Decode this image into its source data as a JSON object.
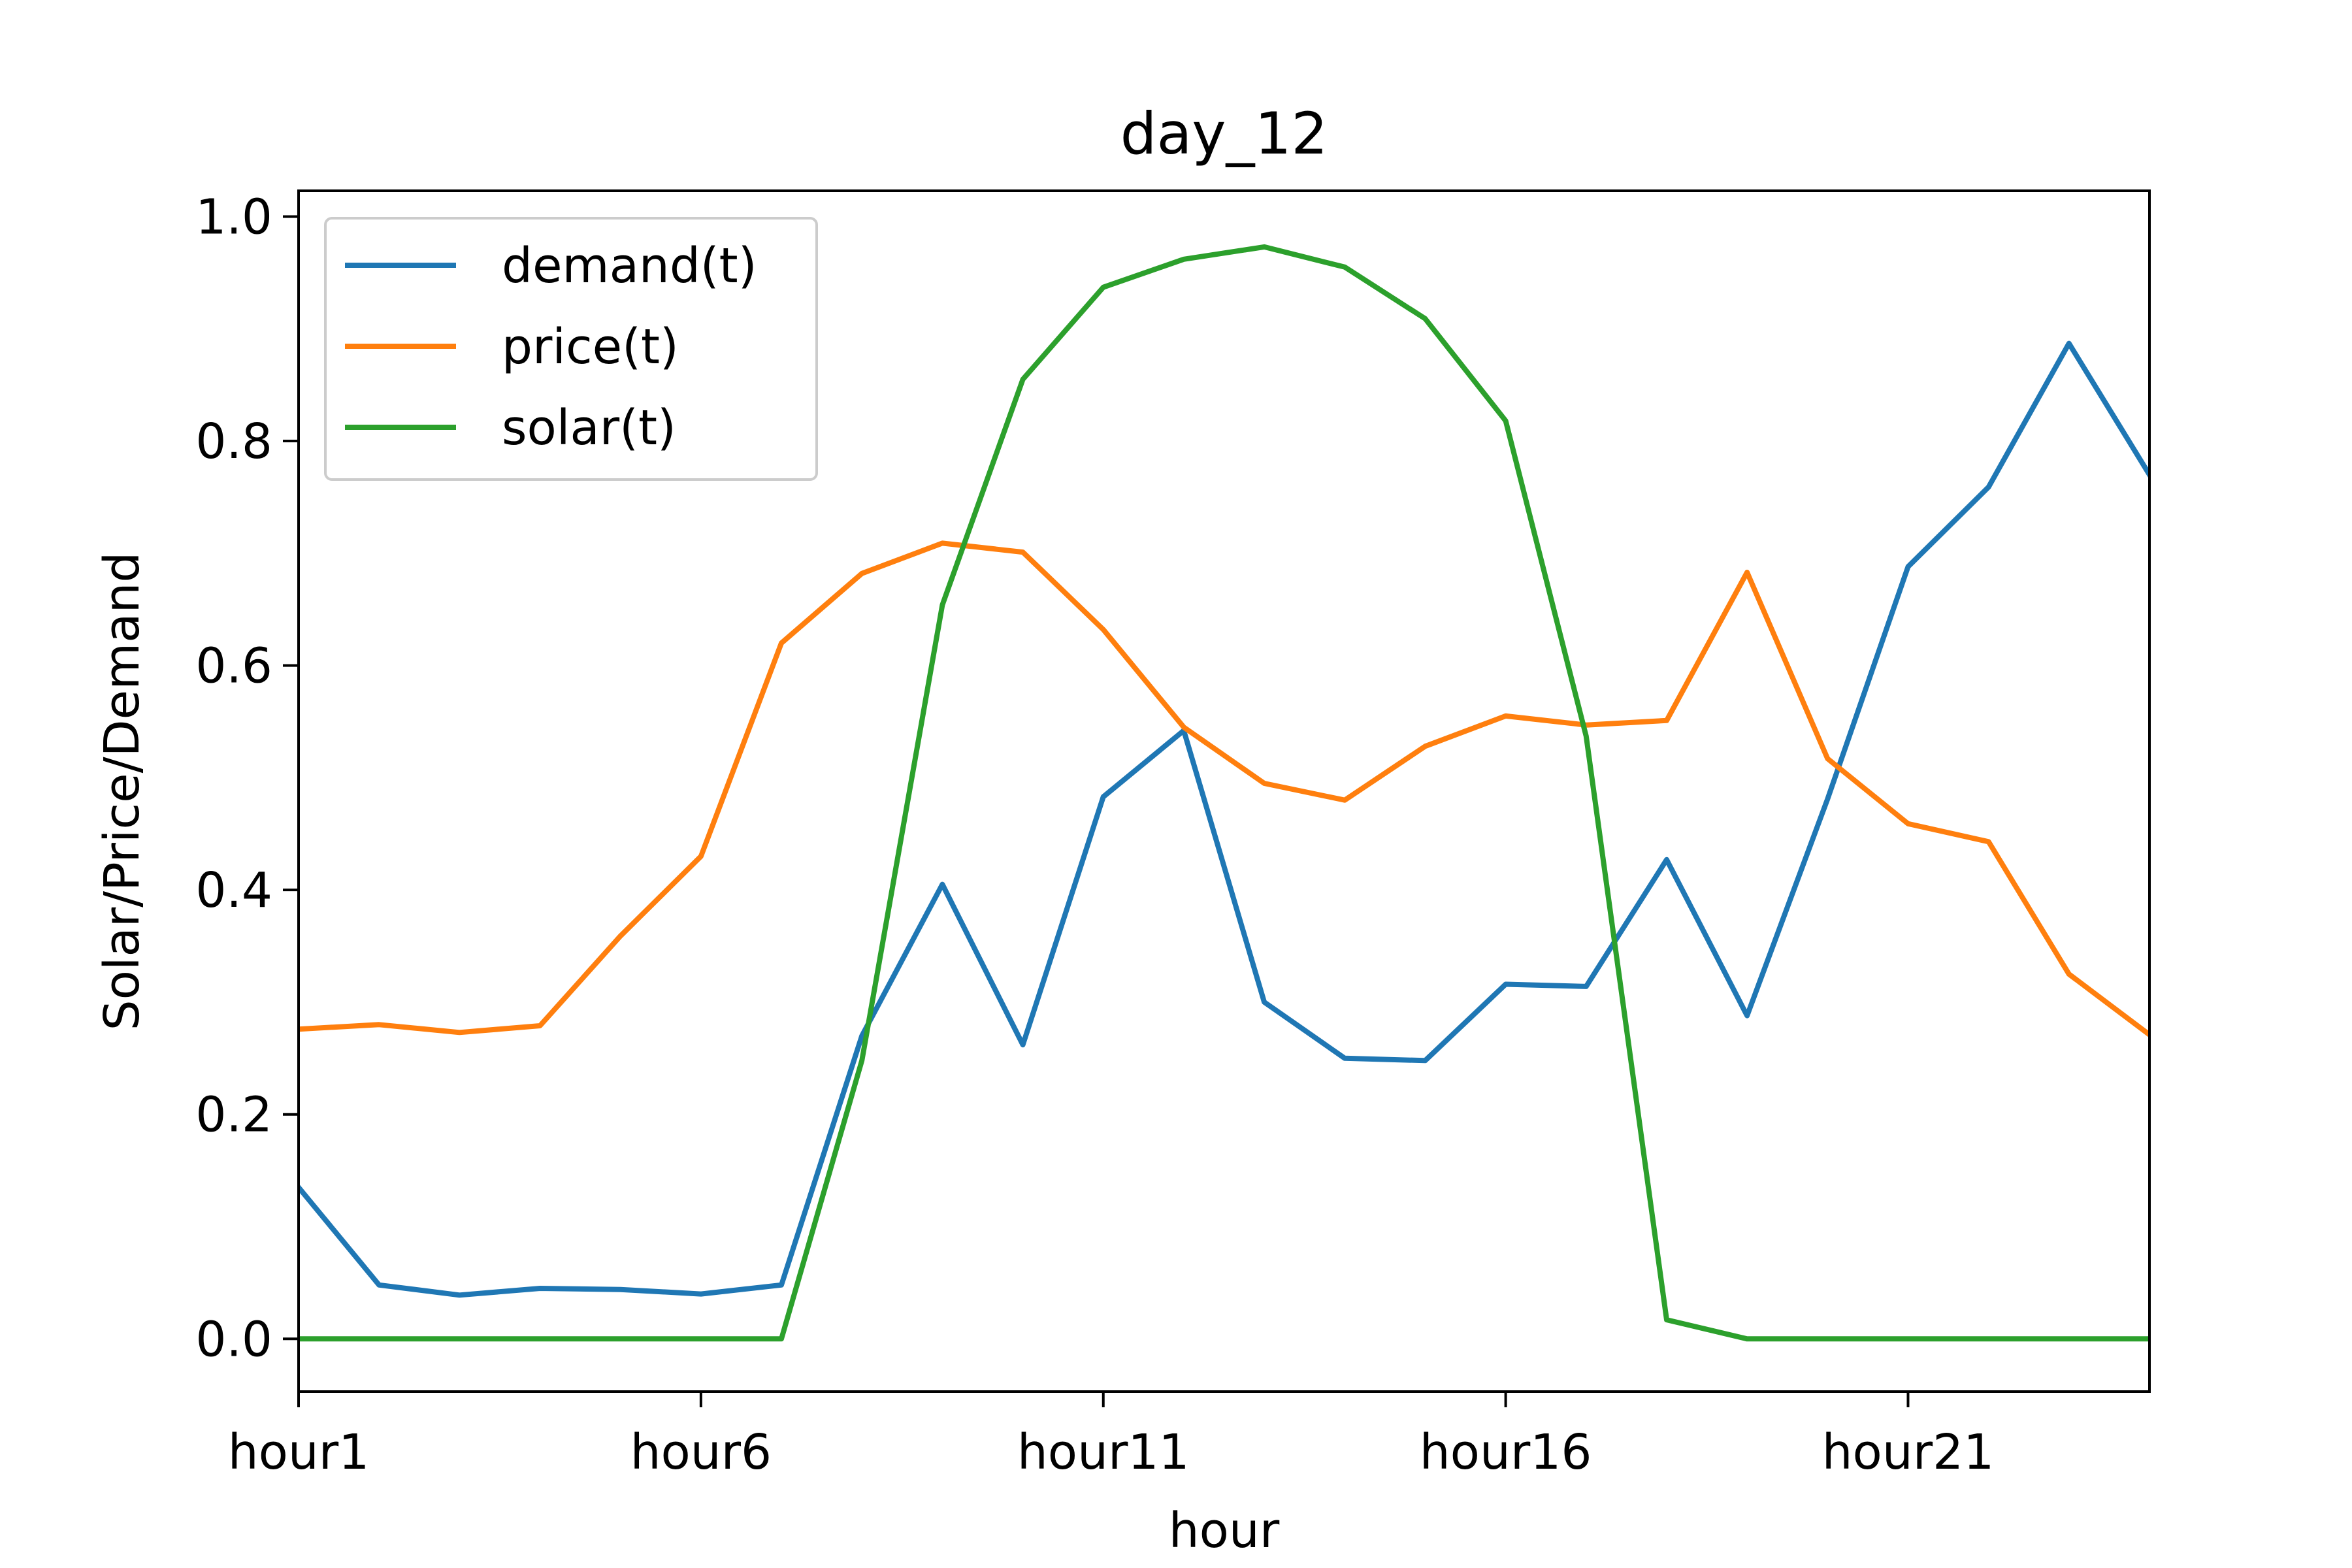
{
  "chart_data": {
    "type": "line",
    "title": "day_12",
    "xlabel": "hour",
    "ylabel": "Solar/Price/Demand",
    "x": [
      "hour1",
      "hour2",
      "hour3",
      "hour4",
      "hour5",
      "hour6",
      "hour7",
      "hour8",
      "hour9",
      "hour10",
      "hour11",
      "hour12",
      "hour13",
      "hour14",
      "hour15",
      "hour16",
      "hour17",
      "hour18",
      "hour19",
      "hour20",
      "hour21",
      "hour22",
      "hour23",
      "hour24"
    ],
    "x_tick_labels": [
      "hour1",
      "hour6",
      "hour11",
      "hour16",
      "hour21"
    ],
    "y_ticks": [
      0.0,
      0.2,
      0.4,
      0.6,
      0.8,
      1.0
    ],
    "y_tick_labels": [
      "0.0",
      "0.2",
      "0.4",
      "0.6",
      "0.8",
      "1.0"
    ],
    "ylim": [
      -0.047,
      1.023
    ],
    "grid": false,
    "legend_position": "upper-left",
    "series": [
      {
        "name": "demand(t)",
        "color": "#1f77b4",
        "values": [
          0.135,
          0.048,
          0.039,
          0.045,
          0.044,
          0.04,
          0.048,
          0.27,
          0.405,
          0.262,
          0.483,
          0.542,
          0.3,
          0.25,
          0.248,
          0.316,
          0.314,
          0.427,
          0.288,
          0.481,
          0.688,
          0.759,
          0.887,
          0.77
        ]
      },
      {
        "name": "price(t)",
        "color": "#ff7f0e",
        "values": [
          0.276,
          0.28,
          0.273,
          0.279,
          0.359,
          0.43,
          0.62,
          0.682,
          0.709,
          0.701,
          0.632,
          0.545,
          0.495,
          0.48,
          0.528,
          0.555,
          0.547,
          0.551,
          0.683,
          0.517,
          0.459,
          0.443,
          0.325,
          0.271
        ]
      },
      {
        "name": "solar(t)",
        "color": "#2ca02c",
        "values": [
          0.0,
          0.0,
          0.0,
          0.0,
          0.0,
          0.0,
          0.0,
          0.248,
          0.654,
          0.855,
          0.937,
          0.962,
          0.973,
          0.955,
          0.909,
          0.818,
          0.537,
          0.017,
          0.0,
          0.0,
          0.0,
          0.0,
          0.0,
          0.0
        ]
      }
    ]
  }
}
